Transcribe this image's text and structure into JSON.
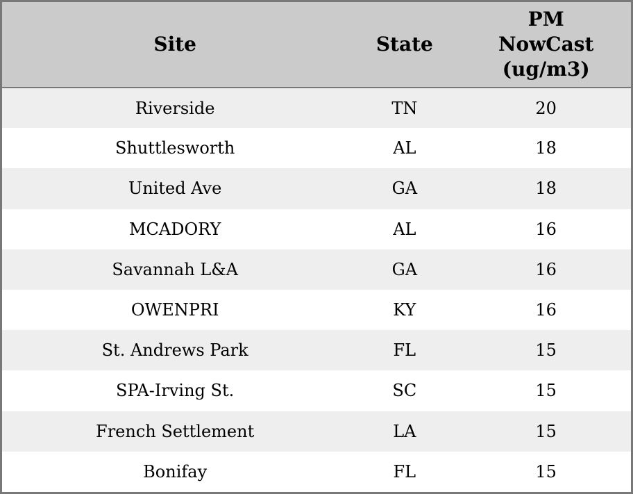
{
  "colors": {
    "header_background": "#cbcbcb",
    "row_stripe": "#eeeeee",
    "row_plain": "#ffffff",
    "outer_border": "#787878",
    "text": "#000000"
  },
  "chart_data": {
    "type": "table",
    "title": "",
    "columns": [
      "Site",
      "State",
      "PM NowCast (ug/m3)"
    ],
    "header_display": [
      "Site",
      "State",
      "PM\nNowCast\n(ug/m3)"
    ],
    "rows": [
      [
        "Riverside",
        "TN",
        "20"
      ],
      [
        "Shuttlesworth",
        "AL",
        "18"
      ],
      [
        "United Ave",
        "GA",
        "18"
      ],
      [
        "MCADORY",
        "AL",
        "16"
      ],
      [
        "Savannah L&A",
        "GA",
        "16"
      ],
      [
        "OWENPRI",
        "KY",
        "16"
      ],
      [
        "St. Andrews Park",
        "FL",
        "15"
      ],
      [
        "SPA-Irving St.",
        "SC",
        "15"
      ],
      [
        "French Settlement",
        "LA",
        "15"
      ],
      [
        "Bonifay",
        "FL",
        "15"
      ]
    ]
  }
}
